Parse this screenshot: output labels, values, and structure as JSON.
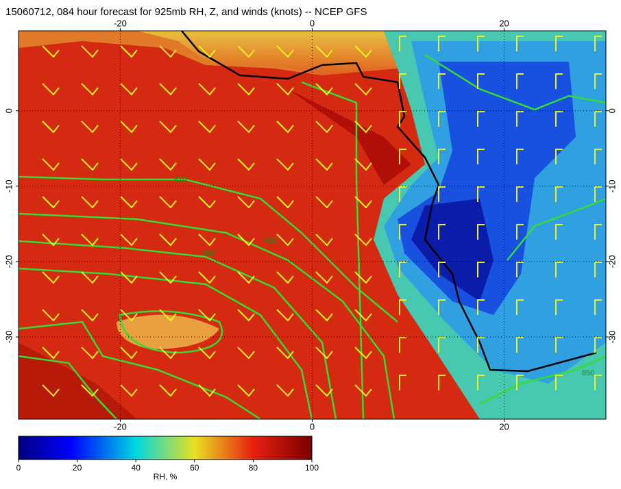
{
  "title": "15060712, 084 hour forecast for 925mb RH, Z, and winds (knots) -- NCEP GFS",
  "map": {
    "xlim": [
      -30.6,
      30.6
    ],
    "ylim": [
      -40.9,
      10.6
    ],
    "xticks": [
      -20,
      0,
      20
    ],
    "yticks": [
      0,
      -10,
      -20,
      -30
    ],
    "contour_labels": [
      "810",
      "830",
      "850",
      "850"
    ]
  },
  "colorbar": {
    "lim": [
      0,
      100
    ],
    "ticks": [
      0,
      20,
      40,
      60,
      80,
      100
    ],
    "label": "RH, %"
  }
}
